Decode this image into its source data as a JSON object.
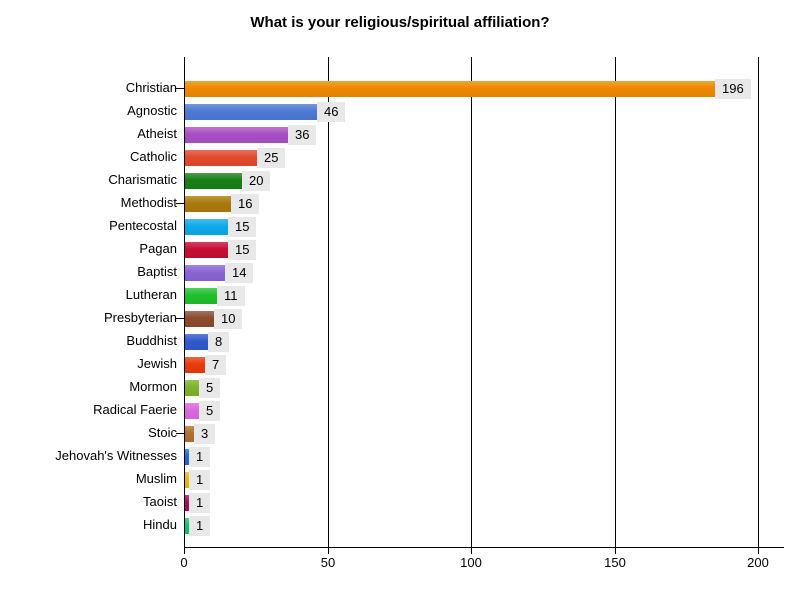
{
  "title": "What is your religious/spiritual affiliation?",
  "chart_data": {
    "type": "bar",
    "orientation": "horizontal",
    "title": "What is your religious/spiritual affiliation?",
    "categories": [
      "Christian",
      "Agnostic",
      "Atheist",
      "Catholic",
      "Charismatic",
      "Methodist",
      "Pentecostal",
      "Pagan",
      "Baptist",
      "Lutheran",
      "Presbyterian",
      "Buddhist",
      "Jewish",
      "Mormon",
      "Radical Faerie",
      "Stoic",
      "Jehovah's Witnesses",
      "Muslim",
      "Taoist",
      "Hindu"
    ],
    "values": [
      196,
      46,
      36,
      25,
      20,
      16,
      15,
      15,
      14,
      11,
      10,
      8,
      7,
      5,
      5,
      3,
      1,
      1,
      1,
      1
    ],
    "bar_colors": [
      "#EE8800",
      "#4D79D2",
      "#A94FC5",
      "#E2492F",
      "#188018",
      "#AB7A0B",
      "#0CAAE8",
      "#C60D33",
      "#8A63D4",
      "#20C02C",
      "#8B4A2E",
      "#2F5ACB",
      "#E83B0C",
      "#7EB228",
      "#DC67DF",
      "#B0702F",
      "#1E6BD8",
      "#E8BB00",
      "#A60D60",
      "#0FC573"
    ],
    "x_ticks": [
      "0",
      "50",
      "100",
      "150",
      "200"
    ],
    "xlim": [
      0,
      200
    ],
    "xlabel": "",
    "ylabel": "",
    "grid": true,
    "legend": "none",
    "axis_color": "#000000",
    "value_label_bg": "#E8E8E8"
  }
}
